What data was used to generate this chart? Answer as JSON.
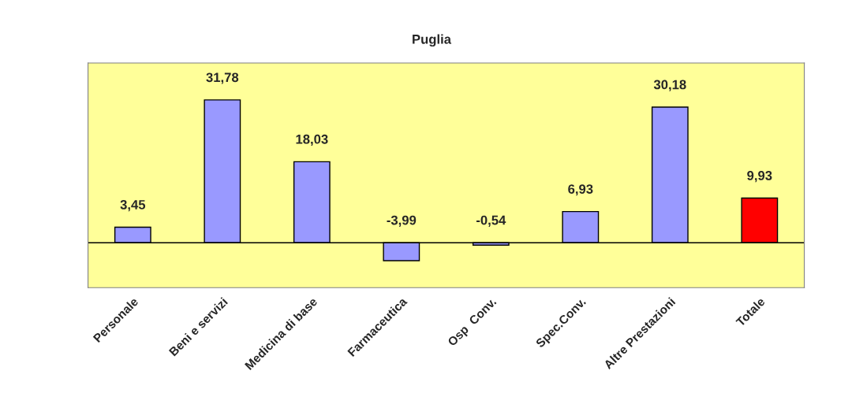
{
  "chart_data": {
    "type": "bar",
    "title": "Puglia",
    "categories": [
      "Personale",
      "Beni e servizi",
      "Medicina di base",
      "Farmaceutica",
      "Osp  Conv.",
      "Spec.Conv.",
      "Altre Prestazioni",
      "Totale"
    ],
    "values": [
      3.45,
      31.78,
      18.03,
      -3.99,
      -0.54,
      6.93,
      30.18,
      9.93
    ],
    "value_labels": [
      "3,45",
      "31,78",
      "18,03",
      "-3,99",
      "-0,54",
      "6,93",
      "30,18",
      "9,93"
    ],
    "colors": [
      "#9999ff",
      "#9999ff",
      "#9999ff",
      "#9999ff",
      "#9999ff",
      "#9999ff",
      "#9999ff",
      "#ff0000"
    ],
    "ylim": [
      -10,
      40
    ],
    "tick_labels": "x",
    "grid": false,
    "legend": false
  }
}
